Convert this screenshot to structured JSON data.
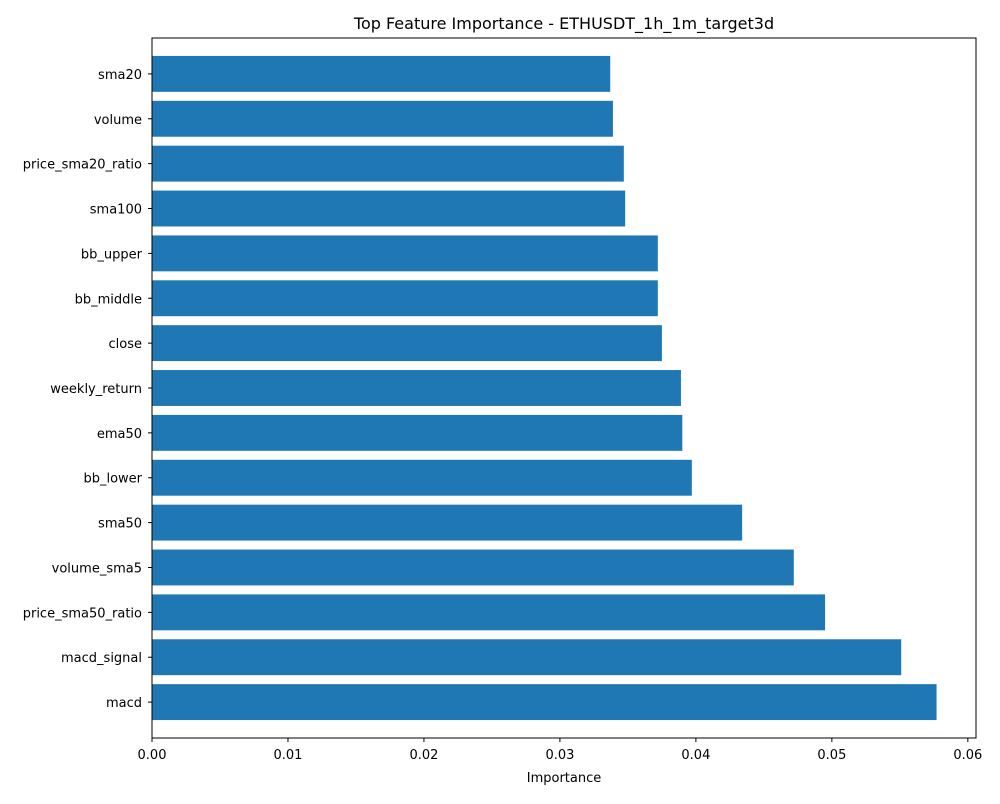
{
  "chart_data": {
    "type": "bar",
    "orientation": "horizontal",
    "title": "Top Feature Importance - ETHUSDT_1h_1m_target3d",
    "xlabel": "Importance",
    "ylabel": "",
    "xlim": [
      0.0,
      0.0606
    ],
    "xticks": [
      "0.00",
      "0.01",
      "0.02",
      "0.03",
      "0.04",
      "0.05",
      "0.06"
    ],
    "xtick_values": [
      0.0,
      0.01,
      0.02,
      0.03,
      0.04,
      0.05,
      0.06
    ],
    "grid": false,
    "bar_color": "#1f77b4",
    "categories": [
      "macd",
      "macd_signal",
      "price_sma50_ratio",
      "volume_sma5",
      "sma50",
      "bb_lower",
      "ema50",
      "weekly_return",
      "close",
      "bb_middle",
      "bb_upper",
      "sma100",
      "price_sma20_ratio",
      "volume",
      "sma20"
    ],
    "values": [
      0.0577,
      0.0551,
      0.0495,
      0.0472,
      0.0434,
      0.0397,
      0.039,
      0.0389,
      0.0375,
      0.0372,
      0.0372,
      0.0348,
      0.0347,
      0.0339,
      0.0337
    ]
  }
}
